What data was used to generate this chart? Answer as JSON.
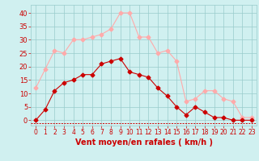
{
  "x": [
    0,
    1,
    2,
    3,
    4,
    5,
    6,
    7,
    8,
    9,
    10,
    11,
    12,
    13,
    14,
    15,
    16,
    17,
    18,
    19,
    20,
    21,
    22,
    23
  ],
  "vent_moyen": [
    0,
    4,
    11,
    14,
    15,
    17,
    17,
    21,
    22,
    23,
    18,
    17,
    16,
    12,
    9,
    5,
    2,
    5,
    3,
    1,
    1,
    0,
    0,
    0
  ],
  "en_rafales": [
    12,
    19,
    26,
    25,
    30,
    30,
    31,
    32,
    34,
    40,
    40,
    31,
    31,
    25,
    26,
    22,
    7,
    8,
    11,
    11,
    8,
    7,
    1,
    1
  ],
  "color_moyen": "#cc0000",
  "color_rafales": "#ffaaaa",
  "background_color": "#d0f0f0",
  "grid_color": "#99cccc",
  "xlabel": "Vent moyen/en rafales ( km/h )",
  "xlabel_color": "#cc0000",
  "xlabel_fontsize": 7,
  "ylabel_ticks": [
    0,
    5,
    10,
    15,
    20,
    25,
    30,
    35,
    40
  ],
  "ylim": [
    -2,
    43
  ],
  "xlim": [
    -0.5,
    23.5
  ],
  "tick_fontsize": 6,
  "tick_color": "#cc0000",
  "marker_size": 2.5,
  "linewidth": 0.8
}
